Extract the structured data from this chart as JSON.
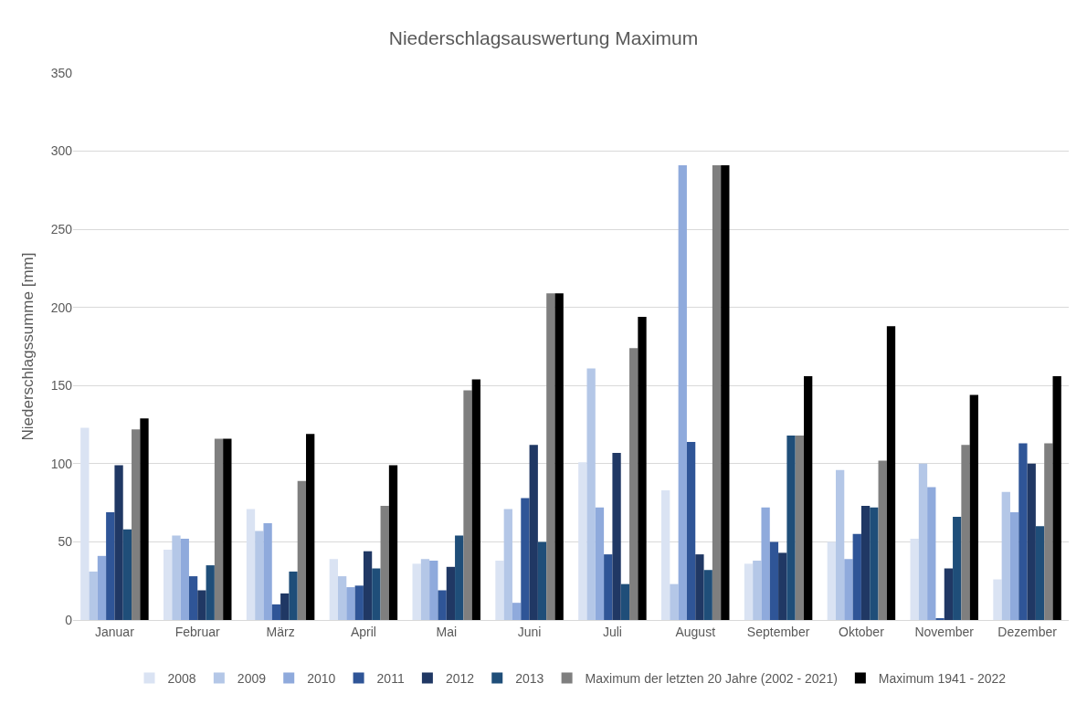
{
  "chart_data": {
    "type": "bar",
    "title": "Niederschlagsauswertung Maximum",
    "ylabel": "Niederschlagssumme [mm]",
    "categories": [
      "Januar",
      "Februar",
      "März",
      "April",
      "Mai",
      "Juni",
      "Juli",
      "August",
      "September",
      "Oktober",
      "November",
      "Dezember"
    ],
    "series": [
      {
        "name": "2008",
        "color": "#dae3f3",
        "values": [
          123,
          45,
          71,
          39,
          36,
          38,
          101,
          83,
          36,
          50,
          52,
          26
        ]
      },
      {
        "name": "2009",
        "color": "#b4c7e7",
        "values": [
          31,
          54,
          57,
          28,
          39,
          71,
          161,
          23,
          38,
          96,
          100,
          82
        ]
      },
      {
        "name": "2010",
        "color": "#8faadc",
        "values": [
          41,
          52,
          62,
          21,
          38,
          11,
          72,
          291,
          72,
          39,
          85,
          69
        ]
      },
      {
        "name": "2011",
        "color": "#2f5597",
        "values": [
          69,
          28,
          10,
          22,
          19,
          78,
          42,
          114,
          50,
          55,
          1,
          113
        ]
      },
      {
        "name": "2012",
        "color": "#203864",
        "values": [
          99,
          19,
          17,
          44,
          34,
          112,
          107,
          42,
          43,
          73,
          33,
          100
        ]
      },
      {
        "name": "2013",
        "color": "#1f4e79",
        "values": [
          58,
          35,
          31,
          33,
          54,
          50,
          23,
          32,
          118,
          72,
          66,
          60
        ]
      },
      {
        "name": "Maximum der letzten 20 Jahre (2002 - 2021)",
        "color": "#7f7f7f",
        "values": [
          122,
          116,
          89,
          73,
          147,
          209,
          174,
          291,
          118,
          102,
          112,
          113
        ]
      },
      {
        "name": "Maximum 1941 - 2022",
        "color": "#000000",
        "values": [
          129,
          116,
          119,
          99,
          154,
          209,
          194,
          291,
          156,
          188,
          144,
          156
        ]
      }
    ],
    "ylim": [
      0,
      350
    ],
    "yticks": [
      0,
      50,
      100,
      150,
      200,
      250,
      300,
      350
    ],
    "grid": "y",
    "legend": "bottom"
  }
}
